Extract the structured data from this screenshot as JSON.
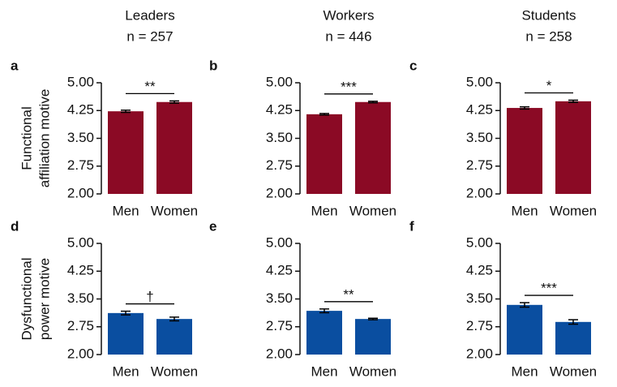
{
  "columns": [
    {
      "group": "Leaders",
      "n": "n = 257"
    },
    {
      "group": "Workers",
      "n": "n = 446"
    },
    {
      "group": "Students",
      "n": "n = 258"
    }
  ],
  "row_labels": [
    [
      "Functional",
      "affiliation motive"
    ],
    [
      "Dysfunctional",
      "power motive"
    ]
  ],
  "chart_data": [
    {
      "type": "bar",
      "panel": "a",
      "categories": [
        "Men",
        "Women"
      ],
      "values": [
        4.23,
        4.48
      ],
      "errors": [
        0.03,
        0.03
      ],
      "color": "#8b0a25",
      "ylim": [
        2,
        5
      ],
      "yticks": [
        {
          "value": 2,
          "label": "2.00"
        },
        {
          "value": 2.75,
          "label": "2.75"
        },
        {
          "value": 3.5,
          "label": "3.50"
        },
        {
          "value": 4.25,
          "label": "4.25"
        },
        {
          "value": 5,
          "label": "5.00"
        }
      ],
      "significance": "**"
    },
    {
      "type": "bar",
      "panel": "b",
      "categories": [
        "Men",
        "Women"
      ],
      "values": [
        4.15,
        4.48
      ],
      "errors": [
        0.02,
        0.02
      ],
      "color": "#8b0a25",
      "ylim": [
        2,
        5
      ],
      "yticks": [
        {
          "value": 2,
          "label": "2.00"
        },
        {
          "value": 2.75,
          "label": "2.75"
        },
        {
          "value": 3.5,
          "label": "3.50"
        },
        {
          "value": 4.25,
          "label": "4.25"
        },
        {
          "value": 5,
          "label": "5.00"
        }
      ],
      "significance": "***"
    },
    {
      "type": "bar",
      "panel": "c",
      "categories": [
        "Men",
        "Women"
      ],
      "values": [
        4.32,
        4.5
      ],
      "errors": [
        0.03,
        0.03
      ],
      "color": "#8b0a25",
      "ylim": [
        2,
        5
      ],
      "yticks": [
        {
          "value": 2,
          "label": "2.00"
        },
        {
          "value": 2.75,
          "label": "2.75"
        },
        {
          "value": 3.5,
          "label": "3.50"
        },
        {
          "value": 4.25,
          "label": "4.25"
        },
        {
          "value": 5,
          "label": "5.00"
        }
      ],
      "significance": "*"
    },
    {
      "type": "bar",
      "panel": "d",
      "categories": [
        "Men",
        "Women"
      ],
      "values": [
        3.12,
        2.96
      ],
      "errors": [
        0.05,
        0.05
      ],
      "color": "#0a4ea0",
      "ylim": [
        2,
        5
      ],
      "yticks": [
        {
          "value": 2,
          "label": "2.00"
        },
        {
          "value": 2.75,
          "label": "2.75"
        },
        {
          "value": 3.5,
          "label": "3.50"
        },
        {
          "value": 4.25,
          "label": "4.25"
        },
        {
          "value": 5,
          "label": "5.00"
        }
      ],
      "significance": "†"
    },
    {
      "type": "bar",
      "panel": "e",
      "categories": [
        "Men",
        "Women"
      ],
      "values": [
        3.18,
        2.96
      ],
      "errors": [
        0.05,
        0.02
      ],
      "color": "#0a4ea0",
      "ylim": [
        2,
        5
      ],
      "yticks": [
        {
          "value": 2,
          "label": "2.00"
        },
        {
          "value": 2.75,
          "label": "2.75"
        },
        {
          "value": 3.5,
          "label": "3.50"
        },
        {
          "value": 4.25,
          "label": "4.25"
        },
        {
          "value": 5,
          "label": "5.00"
        }
      ],
      "significance": "**"
    },
    {
      "type": "bar",
      "panel": "f",
      "categories": [
        "Men",
        "Women"
      ],
      "values": [
        3.34,
        2.88
      ],
      "errors": [
        0.06,
        0.06
      ],
      "color": "#0a4ea0",
      "ylim": [
        2,
        5
      ],
      "yticks": [
        {
          "value": 2,
          "label": "2.00"
        },
        {
          "value": 2.75,
          "label": "2.75"
        },
        {
          "value": 3.5,
          "label": "3.50"
        },
        {
          "value": 4.25,
          "label": "4.25"
        },
        {
          "value": 5,
          "label": "5.00"
        }
      ],
      "significance": "***"
    }
  ]
}
